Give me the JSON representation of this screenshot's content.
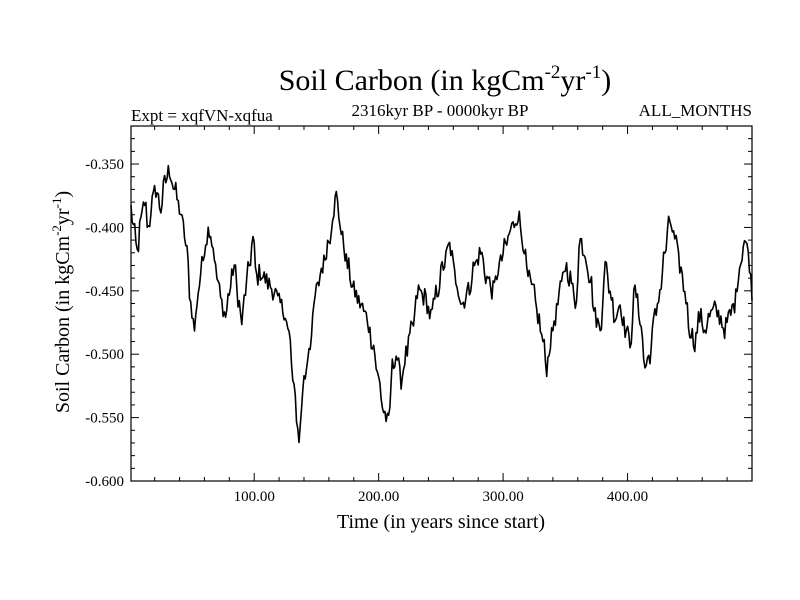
{
  "chart_data": {
    "type": "line",
    "title": {
      "text": "Soil Carbon (in kgCm",
      "sup1": "-2",
      "mid": "yr",
      "sup2": "-1",
      "end": ")"
    },
    "subtitle_left": "Expt = xqfVN-xqfua",
    "subtitle_center": "2316kyr BP - 0000kyr BP",
    "subtitle_right": "ALL_MONTHS",
    "xlabel": "Time (in years since start)",
    "ylabel": {
      "text": "Soil Carbon (in kgCm",
      "sup1": "-2",
      "mid": "yr",
      "sup2": "-1",
      "end": ")"
    },
    "xlim": [
      1,
      500
    ],
    "ylim": [
      -0.6,
      -0.32
    ],
    "x_ticks": [
      100,
      200,
      300,
      400
    ],
    "x_tick_labels": [
      "100.00",
      "200.00",
      "300.00",
      "400.00"
    ],
    "y_ticks": [
      -0.6,
      -0.55,
      -0.5,
      -0.45,
      -0.4,
      -0.35
    ],
    "y_tick_labels": [
      "-0.600",
      "-0.550",
      "-0.500",
      "-0.450",
      "-0.400",
      "-0.350"
    ],
    "series": [
      {
        "name": "Soil Carbon",
        "color": "#000000",
        "keypoints_x": [
          1,
          3,
          6,
          9,
          12,
          15,
          18,
          21,
          25,
          28,
          32,
          36,
          40,
          43,
          46,
          49,
          52,
          55,
          58,
          61,
          64,
          67,
          70,
          74,
          77,
          80,
          84,
          87,
          90,
          93,
          96,
          99,
          102,
          105,
          108,
          112,
          116,
          120,
          124,
          128,
          132,
          136,
          140,
          145,
          150,
          155,
          160,
          164,
          166,
          168,
          171,
          175,
          180,
          185,
          190,
          195,
          200,
          204,
          208,
          211,
          214,
          218,
          222,
          227,
          232,
          237,
          242,
          247,
          252,
          257,
          262,
          267,
          272,
          277,
          282,
          287,
          292,
          297,
          302,
          307,
          312,
          316,
          320,
          324,
          328,
          332,
          335,
          338,
          342,
          346,
          350,
          354,
          358,
          362,
          366,
          370,
          374,
          378,
          382,
          386,
          390,
          394,
          398,
          402,
          406,
          410,
          414,
          418,
          422,
          426,
          430,
          434,
          438,
          442,
          446,
          450,
          454,
          458,
          462,
          466,
          470,
          474,
          478,
          482,
          486,
          490,
          494,
          497,
          500
        ],
        "keypoints_y": [
          -0.385,
          -0.4,
          -0.42,
          -0.395,
          -0.38,
          -0.4,
          -0.38,
          -0.37,
          -0.385,
          -0.365,
          -0.355,
          -0.37,
          -0.385,
          -0.4,
          -0.42,
          -0.46,
          -0.48,
          -0.45,
          -0.43,
          -0.41,
          -0.4,
          -0.415,
          -0.44,
          -0.46,
          -0.47,
          -0.45,
          -0.43,
          -0.455,
          -0.475,
          -0.45,
          -0.43,
          -0.41,
          -0.44,
          -0.435,
          -0.44,
          -0.445,
          -0.45,
          -0.46,
          -0.465,
          -0.485,
          -0.53,
          -0.565,
          -0.52,
          -0.49,
          -0.45,
          -0.43,
          -0.41,
          -0.385,
          -0.375,
          -0.39,
          -0.41,
          -0.43,
          -0.45,
          -0.46,
          -0.47,
          -0.49,
          -0.52,
          -0.545,
          -0.555,
          -0.51,
          -0.5,
          -0.52,
          -0.5,
          -0.48,
          -0.45,
          -0.455,
          -0.47,
          -0.45,
          -0.43,
          -0.415,
          -0.44,
          -0.46,
          -0.45,
          -0.43,
          -0.42,
          -0.44,
          -0.45,
          -0.43,
          -0.415,
          -0.4,
          -0.39,
          -0.41,
          -0.44,
          -0.45,
          -0.47,
          -0.49,
          -0.51,
          -0.49,
          -0.47,
          -0.45,
          -0.43,
          -0.44,
          -0.46,
          -0.41,
          -0.42,
          -0.44,
          -0.47,
          -0.48,
          -0.43,
          -0.45,
          -0.47,
          -0.46,
          -0.48,
          -0.49,
          -0.45,
          -0.47,
          -0.51,
          -0.5,
          -0.47,
          -0.45,
          -0.42,
          -0.395,
          -0.41,
          -0.43,
          -0.45,
          -0.48,
          -0.49,
          -0.47,
          -0.48,
          -0.47,
          -0.465,
          -0.47,
          -0.48,
          -0.47,
          -0.46,
          -0.43,
          -0.41,
          -0.42,
          -0.45
        ]
      }
    ]
  }
}
